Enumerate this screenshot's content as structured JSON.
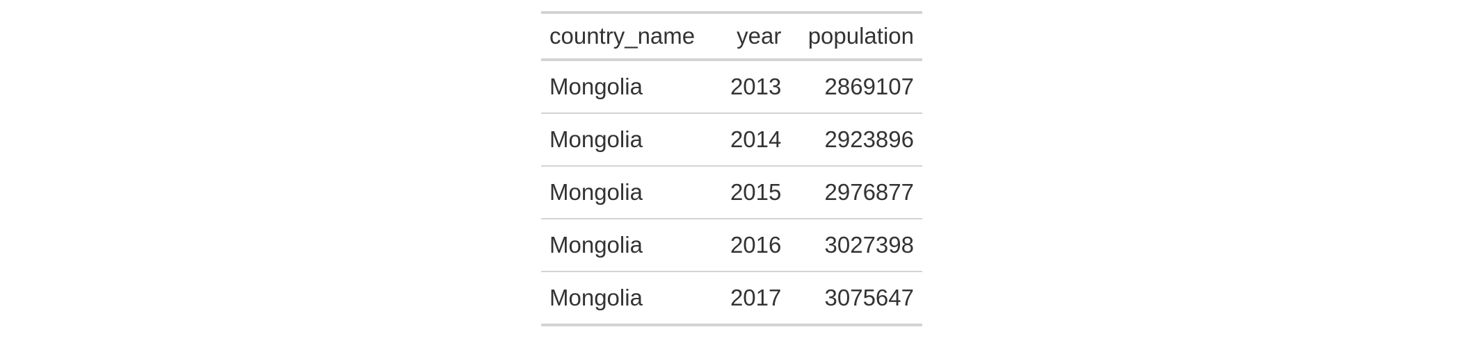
{
  "table": {
    "columns": [
      {
        "label": "country_name",
        "align": "left"
      },
      {
        "label": "year",
        "align": "right"
      },
      {
        "label": "population",
        "align": "right"
      }
    ],
    "rows": [
      {
        "country_name": "Mongolia",
        "year": "2013",
        "population": "2869107"
      },
      {
        "country_name": "Mongolia",
        "year": "2014",
        "population": "2923896"
      },
      {
        "country_name": "Mongolia",
        "year": "2015",
        "population": "2976877"
      },
      {
        "country_name": "Mongolia",
        "year": "2016",
        "population": "3027398"
      },
      {
        "country_name": "Mongolia",
        "year": "2017",
        "population": "3075647"
      }
    ]
  }
}
